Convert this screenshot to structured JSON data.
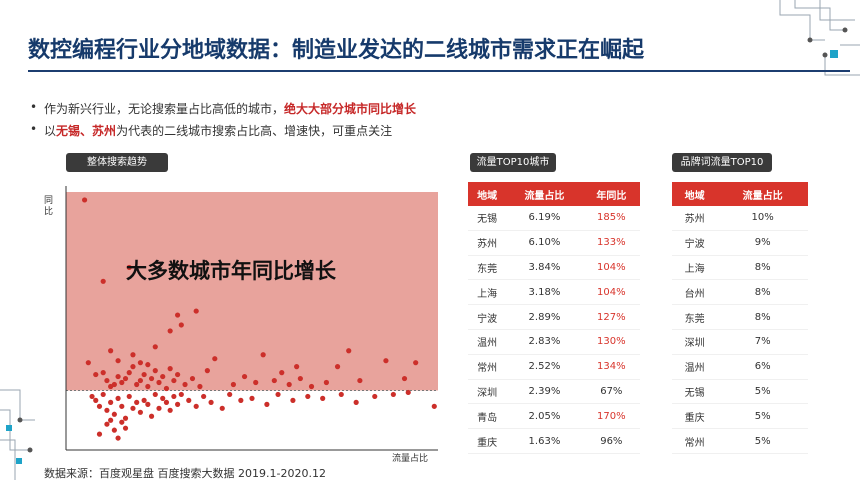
{
  "title": "数控编程行业分地域数据：制造业发达的二线城市需求正在崛起",
  "bullets": [
    {
      "parts": [
        {
          "text": "作为新兴行业，无论搜索量占比高低的城市，",
          "red": false
        },
        {
          "text": "绝大大部分城市同比增长",
          "red": true
        }
      ]
    },
    {
      "parts": [
        {
          "text": "以",
          "red": false
        },
        {
          "text": "无锡",
          "red": true
        },
        {
          "text": "、",
          "red": true
        },
        {
          "text": "苏州",
          "red": true
        },
        {
          "text": "为代表的二线城市搜索占比高、增速快，可重点关注",
          "red": false
        }
      ]
    }
  ],
  "bullet_symbol": "•",
  "chart_section": {
    "label": "整体搜索趋势",
    "annotation": "大多数城市年同比增长"
  },
  "table1": {
    "label": "流量TOP10城市",
    "headers": [
      "地域",
      "流量占比",
      "年同比"
    ],
    "rows": [
      [
        "无锡",
        "6.19%",
        "185%"
      ],
      [
        "苏州",
        "6.10%",
        "133%"
      ],
      [
        "东莞",
        "3.84%",
        "104%"
      ],
      [
        "上海",
        "3.18%",
        "104%"
      ],
      [
        "宁波",
        "2.89%",
        "127%"
      ],
      [
        "温州",
        "2.83%",
        "130%"
      ],
      [
        "常州",
        "2.52%",
        "134%"
      ],
      [
        "深圳",
        "2.39%",
        "67%"
      ],
      [
        "青岛",
        "2.05%",
        "170%"
      ],
      [
        "重庆",
        "1.63%",
        "96%"
      ]
    ],
    "highlight_above": 100
  },
  "table2": {
    "label": "品牌词流量TOP10",
    "headers": [
      "地域",
      "流量占比"
    ],
    "rows": [
      [
        "苏州",
        "10%"
      ],
      [
        "宁波",
        "9%"
      ],
      [
        "上海",
        "8%"
      ],
      [
        "台州",
        "8%"
      ],
      [
        "东莞",
        "8%"
      ],
      [
        "深圳",
        "7%"
      ],
      [
        "温州",
        "6%"
      ],
      [
        "无锡",
        "5%"
      ],
      [
        "重庆",
        "5%"
      ],
      [
        "常州",
        "5%"
      ]
    ]
  },
  "source": "数据来源：百度观星盘 百度搜索大数据 2019.1-2020.12",
  "colors": {
    "accent": "#d8342b",
    "title": "#163a6b",
    "region": "#e8a39c",
    "dot": "#cc2f2a"
  },
  "chart_data": {
    "type": "scatter",
    "xlabel": "流量占比",
    "ylabel": "同比",
    "x_range": [
      0,
      100
    ],
    "y_range": [
      -30,
      100
    ],
    "reference_line_y": 0,
    "shaded_region": "above reference line",
    "points": [
      [
        5,
        96
      ],
      [
        10,
        55
      ],
      [
        12,
        20
      ],
      [
        17,
        62
      ],
      [
        30,
        38
      ],
      [
        35,
        40
      ],
      [
        31,
        33
      ],
      [
        28,
        30
      ],
      [
        24,
        22
      ],
      [
        14,
        15
      ],
      [
        18,
        18
      ],
      [
        20,
        14
      ],
      [
        22,
        13
      ],
      [
        6,
        14
      ],
      [
        8,
        8
      ],
      [
        10,
        9
      ],
      [
        11,
        5
      ],
      [
        12,
        2
      ],
      [
        13,
        3
      ],
      [
        14,
        7
      ],
      [
        15,
        4
      ],
      [
        16,
        6
      ],
      [
        17,
        9
      ],
      [
        18,
        12
      ],
      [
        19,
        3
      ],
      [
        20,
        5
      ],
      [
        21,
        8
      ],
      [
        22,
        2
      ],
      [
        23,
        6
      ],
      [
        24,
        10
      ],
      [
        25,
        4
      ],
      [
        26,
        7
      ],
      [
        27,
        1
      ],
      [
        28,
        11
      ],
      [
        29,
        5
      ],
      [
        30,
        8
      ],
      [
        32,
        3
      ],
      [
        34,
        6
      ],
      [
        36,
        2
      ],
      [
        38,
        10
      ],
      [
        40,
        16
      ],
      [
        45,
        3
      ],
      [
        48,
        7
      ],
      [
        51,
        4
      ],
      [
        53,
        18
      ],
      [
        56,
        5
      ],
      [
        58,
        9
      ],
      [
        60,
        3
      ],
      [
        63,
        6
      ],
      [
        70,
        4
      ],
      [
        73,
        12
      ],
      [
        79,
        5
      ],
      [
        86,
        15
      ],
      [
        91,
        6
      ],
      [
        94,
        14
      ],
      [
        62,
        12
      ],
      [
        66,
        2
      ],
      [
        76,
        20
      ],
      [
        7,
        -3
      ],
      [
        8,
        -5
      ],
      [
        9,
        -8
      ],
      [
        10,
        -2
      ],
      [
        11,
        -10
      ],
      [
        12,
        -6
      ],
      [
        13,
        -12
      ],
      [
        14,
        -4
      ],
      [
        15,
        -8
      ],
      [
        16,
        -14
      ],
      [
        17,
        -3
      ],
      [
        18,
        -9
      ],
      [
        19,
        -6
      ],
      [
        20,
        -11
      ],
      [
        21,
        -5
      ],
      [
        22,
        -7
      ],
      [
        23,
        -13
      ],
      [
        24,
        -2
      ],
      [
        25,
        -9
      ],
      [
        26,
        -4
      ],
      [
        27,
        -6
      ],
      [
        28,
        -10
      ],
      [
        29,
        -3
      ],
      [
        30,
        -7
      ],
      [
        31,
        -2
      ],
      [
        33,
        -5
      ],
      [
        35,
        -8
      ],
      [
        37,
        -3
      ],
      [
        39,
        -6
      ],
      [
        42,
        -9
      ],
      [
        44,
        -2
      ],
      [
        47,
        -5
      ],
      [
        50,
        -4
      ],
      [
        54,
        -7
      ],
      [
        57,
        -2
      ],
      [
        61,
        -5
      ],
      [
        65,
        -3
      ],
      [
        69,
        -4
      ],
      [
        74,
        -2
      ],
      [
        78,
        -6
      ],
      [
        83,
        -3
      ],
      [
        88,
        -2
      ],
      [
        92,
        -1
      ],
      [
        99,
        -8
      ],
      [
        11,
        -17
      ],
      [
        13,
        -20
      ],
      [
        15,
        -16
      ],
      [
        9,
        -22
      ],
      [
        12,
        -15
      ],
      [
        16,
        -19
      ],
      [
        14,
        -24
      ]
    ]
  }
}
